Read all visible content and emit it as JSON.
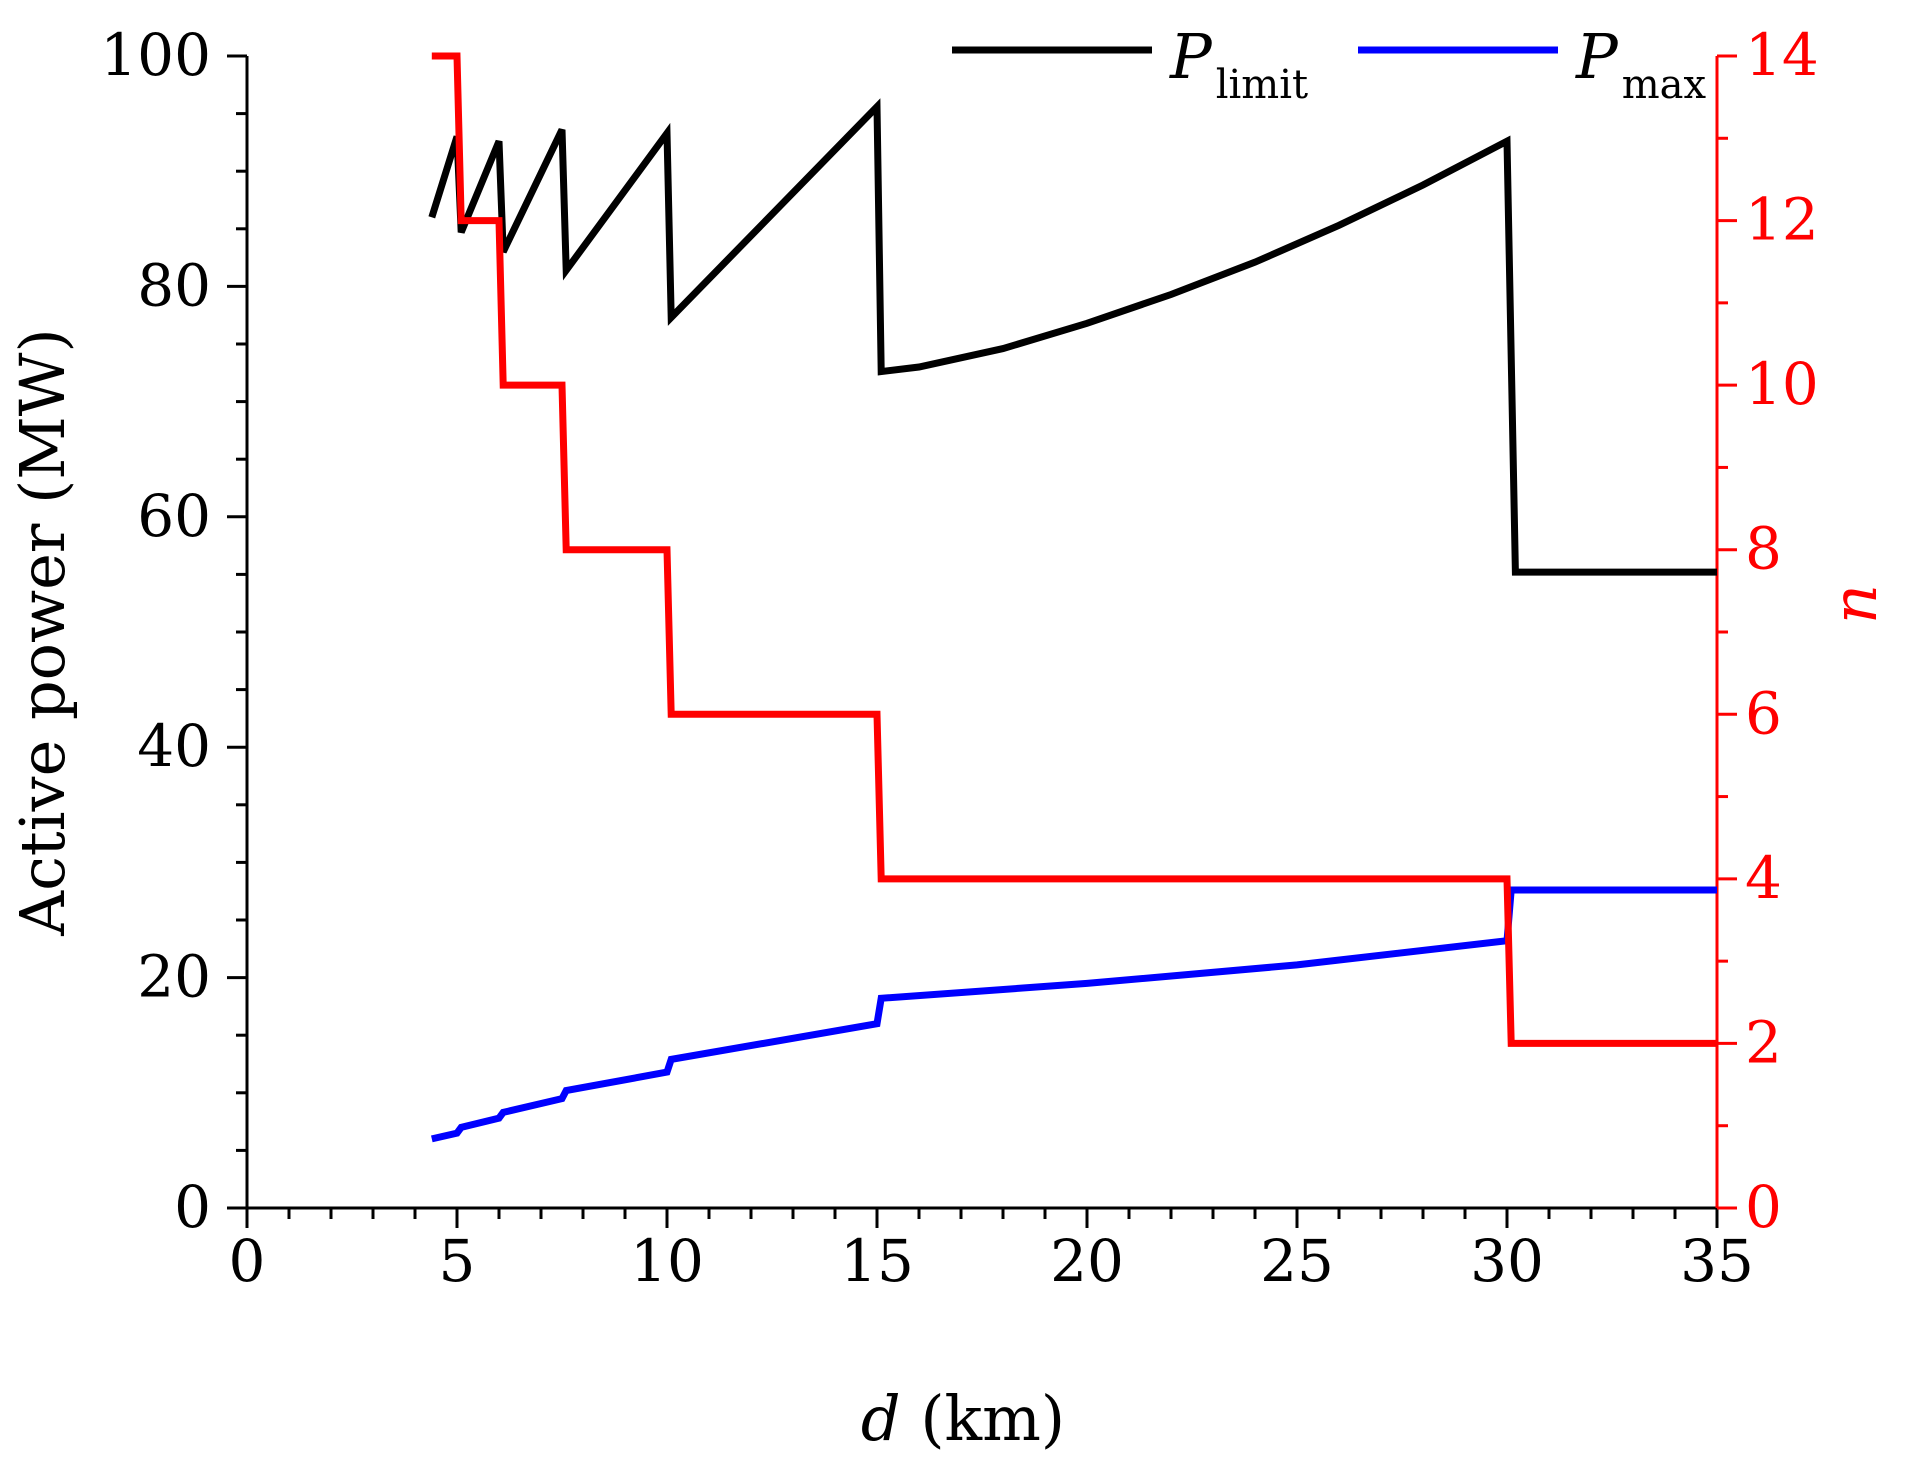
{
  "chart_data": {
    "type": "line",
    "title": "",
    "xlabel_italic": "d",
    "xlabel_rest": " (km)",
    "ylabel_left": "Active power (MW)",
    "ylabel_right": "n",
    "xlim": [
      0,
      35
    ],
    "ylim_left": [
      0,
      100
    ],
    "ylim_right": [
      0,
      14
    ],
    "x_ticks": [
      0,
      5,
      10,
      15,
      20,
      25,
      30,
      35
    ],
    "y_left_ticks": [
      0,
      20,
      40,
      60,
      80,
      100
    ],
    "y_right_ticks": [
      0,
      2,
      4,
      6,
      8,
      10,
      12,
      14
    ],
    "legend_position": "top-right",
    "series": [
      {
        "name": "P_limit",
        "legend_main": "P",
        "legend_sub": "limit",
        "axis": "left",
        "color": "#000000",
        "points": [
          [
            4.4,
            86.0
          ],
          [
            5.0,
            93.0
          ],
          [
            5.1,
            84.7
          ],
          [
            6.0,
            92.6
          ],
          [
            6.1,
            83.0
          ],
          [
            7.5,
            93.6
          ],
          [
            7.6,
            81.4
          ],
          [
            10.0,
            93.3
          ],
          [
            10.1,
            77.3
          ],
          [
            15.0,
            95.6
          ],
          [
            15.1,
            72.6
          ],
          [
            16.0,
            73.0
          ],
          [
            18.0,
            74.6
          ],
          [
            20.0,
            76.8
          ],
          [
            22.0,
            79.3
          ],
          [
            24.0,
            82.1
          ],
          [
            26.0,
            85.3
          ],
          [
            28.0,
            88.8
          ],
          [
            30.0,
            92.6
          ],
          [
            30.2,
            55.2
          ],
          [
            35.0,
            55.2
          ]
        ]
      },
      {
        "name": "P_max",
        "legend_main": "P",
        "legend_sub": "max",
        "axis": "left",
        "color": "#0000ff",
        "points": [
          [
            4.4,
            6.0
          ],
          [
            5.0,
            6.5
          ],
          [
            5.1,
            7.0
          ],
          [
            6.0,
            7.8
          ],
          [
            6.1,
            8.3
          ],
          [
            7.5,
            9.5
          ],
          [
            7.6,
            10.2
          ],
          [
            10.0,
            11.8
          ],
          [
            10.1,
            12.9
          ],
          [
            15.0,
            16.0
          ],
          [
            15.1,
            18.2
          ],
          [
            20.0,
            19.5
          ],
          [
            25.0,
            21.1
          ],
          [
            30.0,
            23.2
          ],
          [
            30.1,
            27.6
          ],
          [
            35.0,
            27.6
          ]
        ]
      },
      {
        "name": "n",
        "axis": "right",
        "color": "#ff0000",
        "points": [
          [
            4.4,
            14
          ],
          [
            5.0,
            14
          ],
          [
            5.1,
            12
          ],
          [
            6.0,
            12
          ],
          [
            6.1,
            10
          ],
          [
            7.5,
            10
          ],
          [
            7.6,
            8
          ],
          [
            10.0,
            8
          ],
          [
            10.1,
            6
          ],
          [
            15.0,
            6
          ],
          [
            15.1,
            4
          ],
          [
            30.0,
            4
          ],
          [
            30.1,
            2
          ],
          [
            35.0,
            2
          ]
        ]
      }
    ]
  }
}
